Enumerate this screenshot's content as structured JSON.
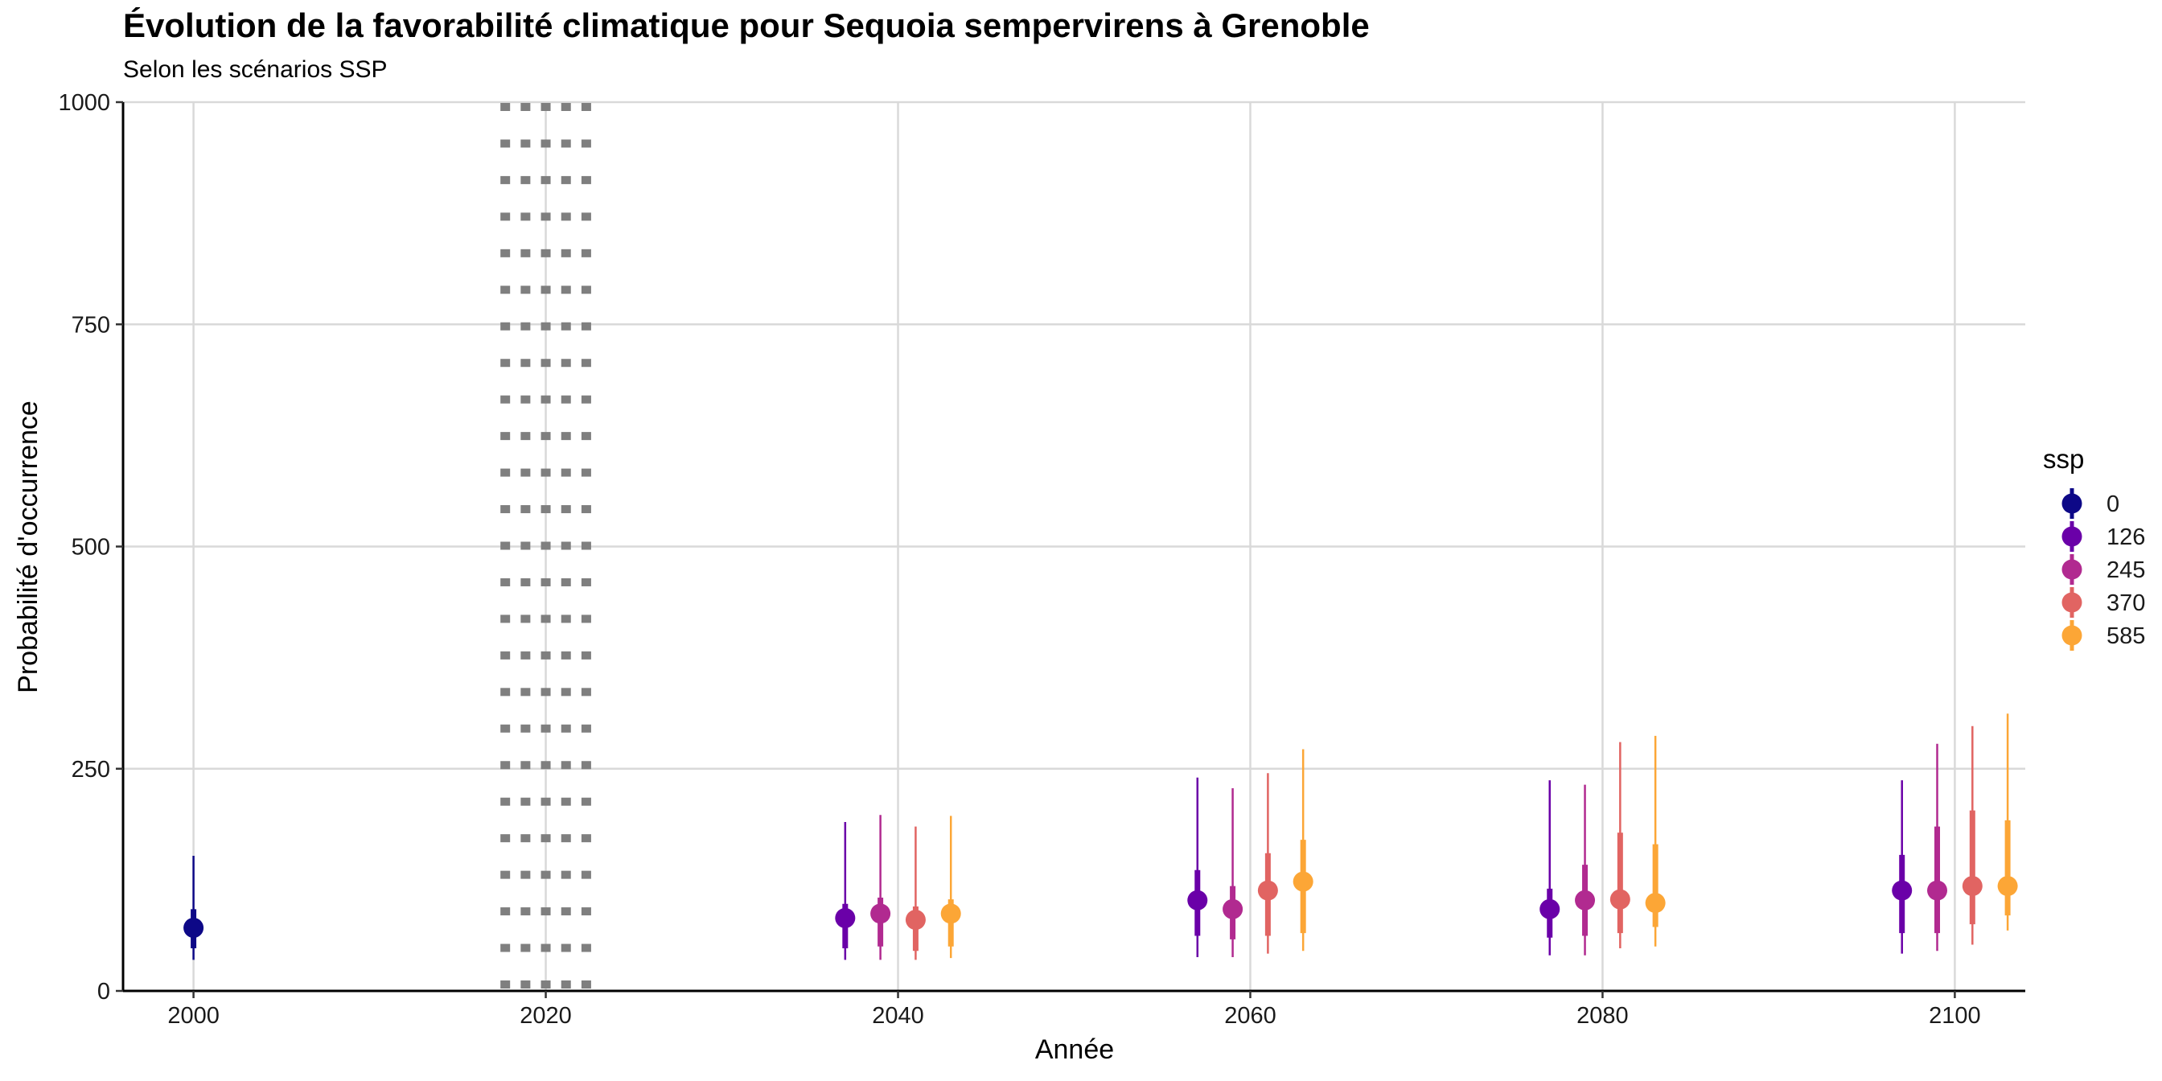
{
  "chart_data": {
    "type": "scatter",
    "title": "Évolution de la favorabilité climatique pour Sequoia sempervirens à Grenoble",
    "subtitle": "Selon les scénarios SSP",
    "xlabel": "Année",
    "ylabel": "Probabilité d'occurrence",
    "xlim": [
      1996,
      2104
    ],
    "ylim": [
      0,
      1000
    ],
    "x_ticks": [
      2000,
      2020,
      2040,
      2060,
      2080,
      2100
    ],
    "y_ticks": [
      0,
      250,
      500,
      750,
      1000
    ],
    "grid": true,
    "reference_band": {
      "x_start": 2017.7,
      "x_end": 2022.3,
      "style": "dotted",
      "color": "#7f7f7f"
    },
    "legend": {
      "title": "ssp",
      "position": "right"
    },
    "series": [
      {
        "name": "0",
        "color": "#0d0887",
        "points": [
          {
            "x": 2000,
            "y": 71,
            "inner": [
              48,
              92
            ],
            "outer": [
              35,
              152
            ]
          }
        ]
      },
      {
        "name": "126",
        "color": "#6a00a8",
        "points": [
          {
            "x": 2037,
            "y": 82,
            "inner": [
              48,
              98
            ],
            "outer": [
              35,
              190
            ]
          },
          {
            "x": 2057,
            "y": 102,
            "inner": [
              62,
              136
            ],
            "outer": [
              38,
              240
            ]
          },
          {
            "x": 2077,
            "y": 92,
            "inner": [
              60,
              115
            ],
            "outer": [
              40,
              237
            ]
          },
          {
            "x": 2097,
            "y": 113,
            "inner": [
              65,
              153
            ],
            "outer": [
              42,
              237
            ]
          }
        ]
      },
      {
        "name": "245",
        "color": "#b12a90",
        "points": [
          {
            "x": 2039,
            "y": 87,
            "inner": [
              50,
              105
            ],
            "outer": [
              35,
              198
            ]
          },
          {
            "x": 2059,
            "y": 92,
            "inner": [
              58,
              118
            ],
            "outer": [
              38,
              228
            ]
          },
          {
            "x": 2079,
            "y": 102,
            "inner": [
              62,
              142
            ],
            "outer": [
              40,
              232
            ]
          },
          {
            "x": 2099,
            "y": 113,
            "inner": [
              65,
              185
            ],
            "outer": [
              45,
              278
            ]
          }
        ]
      },
      {
        "name": "370",
        "color": "#e16462",
        "points": [
          {
            "x": 2041,
            "y": 80,
            "inner": [
              45,
              95
            ],
            "outer": [
              35,
              185
            ]
          },
          {
            "x": 2061,
            "y": 113,
            "inner": [
              62,
              155
            ],
            "outer": [
              42,
              245
            ]
          },
          {
            "x": 2081,
            "y": 103,
            "inner": [
              65,
              178
            ],
            "outer": [
              48,
              280
            ]
          },
          {
            "x": 2101,
            "y": 118,
            "inner": [
              75,
              203
            ],
            "outer": [
              52,
              298
            ]
          }
        ]
      },
      {
        "name": "585",
        "color": "#fca636",
        "points": [
          {
            "x": 2043,
            "y": 87,
            "inner": [
              50,
              103
            ],
            "outer": [
              37,
              197
            ]
          },
          {
            "x": 2063,
            "y": 123,
            "inner": [
              65,
              170
            ],
            "outer": [
              45,
              272
            ]
          },
          {
            "x": 2083,
            "y": 99,
            "inner": [
              72,
              165
            ],
            "outer": [
              50,
              287
            ]
          },
          {
            "x": 2103,
            "y": 118,
            "inner": [
              85,
              192
            ],
            "outer": [
              68,
              312
            ]
          }
        ]
      }
    ]
  }
}
